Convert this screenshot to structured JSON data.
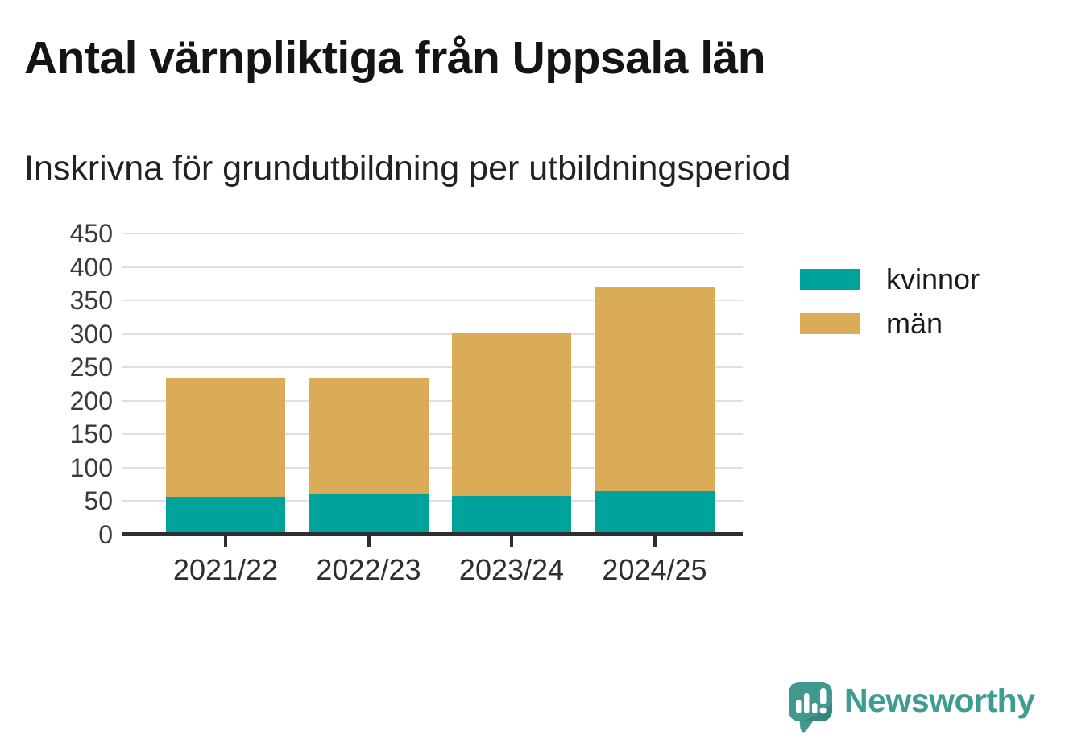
{
  "chart_data": {
    "type": "bar",
    "stacked": true,
    "title": "Antal värnpliktiga från Uppsala län",
    "subtitle": "Inskrivna för grundutbildning per utbildningsperiod",
    "categories": [
      "2021/22",
      "2022/23",
      "2023/24",
      "2024/25"
    ],
    "series": [
      {
        "name": "kvinnor",
        "color": "#00A39B",
        "values": [
          57,
          60,
          58,
          65
        ]
      },
      {
        "name": "män",
        "color": "#DBAC57",
        "values": [
          178,
          175,
          243,
          306
        ]
      }
    ],
    "stack_totals": [
      235,
      235,
      301,
      371
    ],
    "ylim": [
      0,
      450
    ],
    "ytick_step": 50,
    "yticks": [
      0,
      50,
      100,
      150,
      200,
      250,
      300,
      350,
      400,
      450
    ],
    "grid": "horizontal",
    "legend_position": "right"
  },
  "legend": {
    "items": [
      {
        "label": "kvinnor",
        "color": "#00A39B"
      },
      {
        "label": "män",
        "color": "#DBAC57"
      }
    ]
  },
  "branding": {
    "logo_text": "Newsworthy",
    "logo_color": "#3E9C92",
    "logo_bubble_color": "#41988E"
  },
  "colors": {
    "background": "#FFFFFF",
    "grid": "#E0E0E0",
    "axis": "#2E2E2E",
    "tick_label": "#3A3A3A",
    "title": "#141414",
    "subtitle": "#222222",
    "legend_text": "#1A1A1A"
  }
}
